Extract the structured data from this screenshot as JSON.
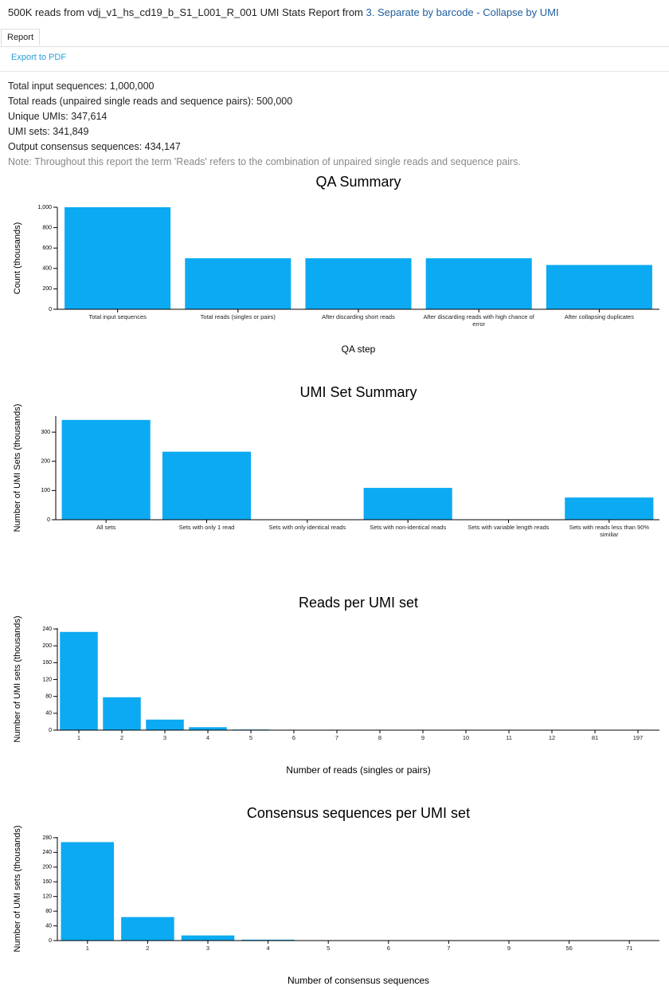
{
  "header": {
    "title": "500K reads from vdj_v1_hs_cd19_b_S1_L001_R_001 UMI Stats Report from",
    "link": "3. Separate by barcode - Collapse by UMI"
  },
  "tab": "Report",
  "export": "Export to PDF",
  "stats": [
    "Total input sequences: 1,000,000",
    "Total reads (unpaired single reads and sequence pairs): 500,000",
    "Unique UMIs: 347,614",
    "UMI sets: 341,849",
    "Output consensus sequences: 434,147"
  ],
  "note": "Note: Throughout this report the term 'Reads' refers to the combination of unpaired single reads and sequence pairs.",
  "chart_data": [
    {
      "type": "bar",
      "title": "QA Summary",
      "y_label": "Count (thousands)",
      "x_label": "QA step",
      "color": "#0caaf2",
      "categories": [
        "Total input sequences",
        "Total reads (singles or pairs)",
        "After discarding short reads",
        "After discarding reads with high chance of error",
        "After collapsing duplicates"
      ],
      "values": [
        1000,
        500,
        500,
        500,
        434.147
      ],
      "ylim": [
        0,
        1000
      ],
      "yticks": [
        0,
        200,
        400,
        600,
        800,
        {
          "value": 1000,
          "label": "1,000"
        }
      ]
    },
    {
      "type": "bar",
      "title": "UMI Set Summary",
      "y_label": "Number of UMI Sets (thousands)",
      "color": "#0caaf2",
      "categories": [
        "All sets",
        "Sets with only 1 read",
        "Sets with only identical reads",
        "Sets with non-identical reads",
        "Sets with variable length reads",
        "Sets with reads less than 90% similiar"
      ],
      "values": [
        341.849,
        233,
        0,
        109,
        0,
        76
      ],
      "ylim": [
        0,
        355
      ],
      "yticks": [
        0,
        100,
        200,
        300
      ]
    },
    {
      "type": "bar",
      "title": "Reads per UMI set",
      "y_label": "Number of UMI sets (thousands)",
      "x_label": "Number of reads (singles or pairs)",
      "color": "#0caaf2",
      "categories": [
        "1",
        "2",
        "3",
        "4",
        "5",
        "6",
        "7",
        "8",
        "9",
        "10",
        "11",
        "12",
        "81",
        "197"
      ],
      "values": [
        233,
        78,
        25,
        7,
        1.5,
        0.4,
        0.1,
        0.05,
        0.02,
        0.01,
        0.005,
        0.002,
        0.001,
        0.001
      ],
      "ylim": [
        0,
        242
      ],
      "yticks": [
        0,
        40,
        80,
        120,
        160,
        200,
        240
      ]
    },
    {
      "type": "bar",
      "title": "Consensus sequences per UMI set",
      "y_label": "Number of UMI sets (thousands)",
      "x_label": "Number of consensus sequences",
      "color": "#0caaf2",
      "categories": [
        "1",
        "2",
        "3",
        "4",
        "5",
        "6",
        "7",
        "9",
        "56",
        "71"
      ],
      "values": [
        268,
        64,
        14,
        2.5,
        0.5,
        0.1,
        0.05,
        0.01,
        0.001,
        0.001
      ],
      "ylim": [
        0,
        282
      ],
      "yticks": [
        0,
        40,
        80,
        120,
        160,
        200,
        240,
        280
      ]
    }
  ]
}
